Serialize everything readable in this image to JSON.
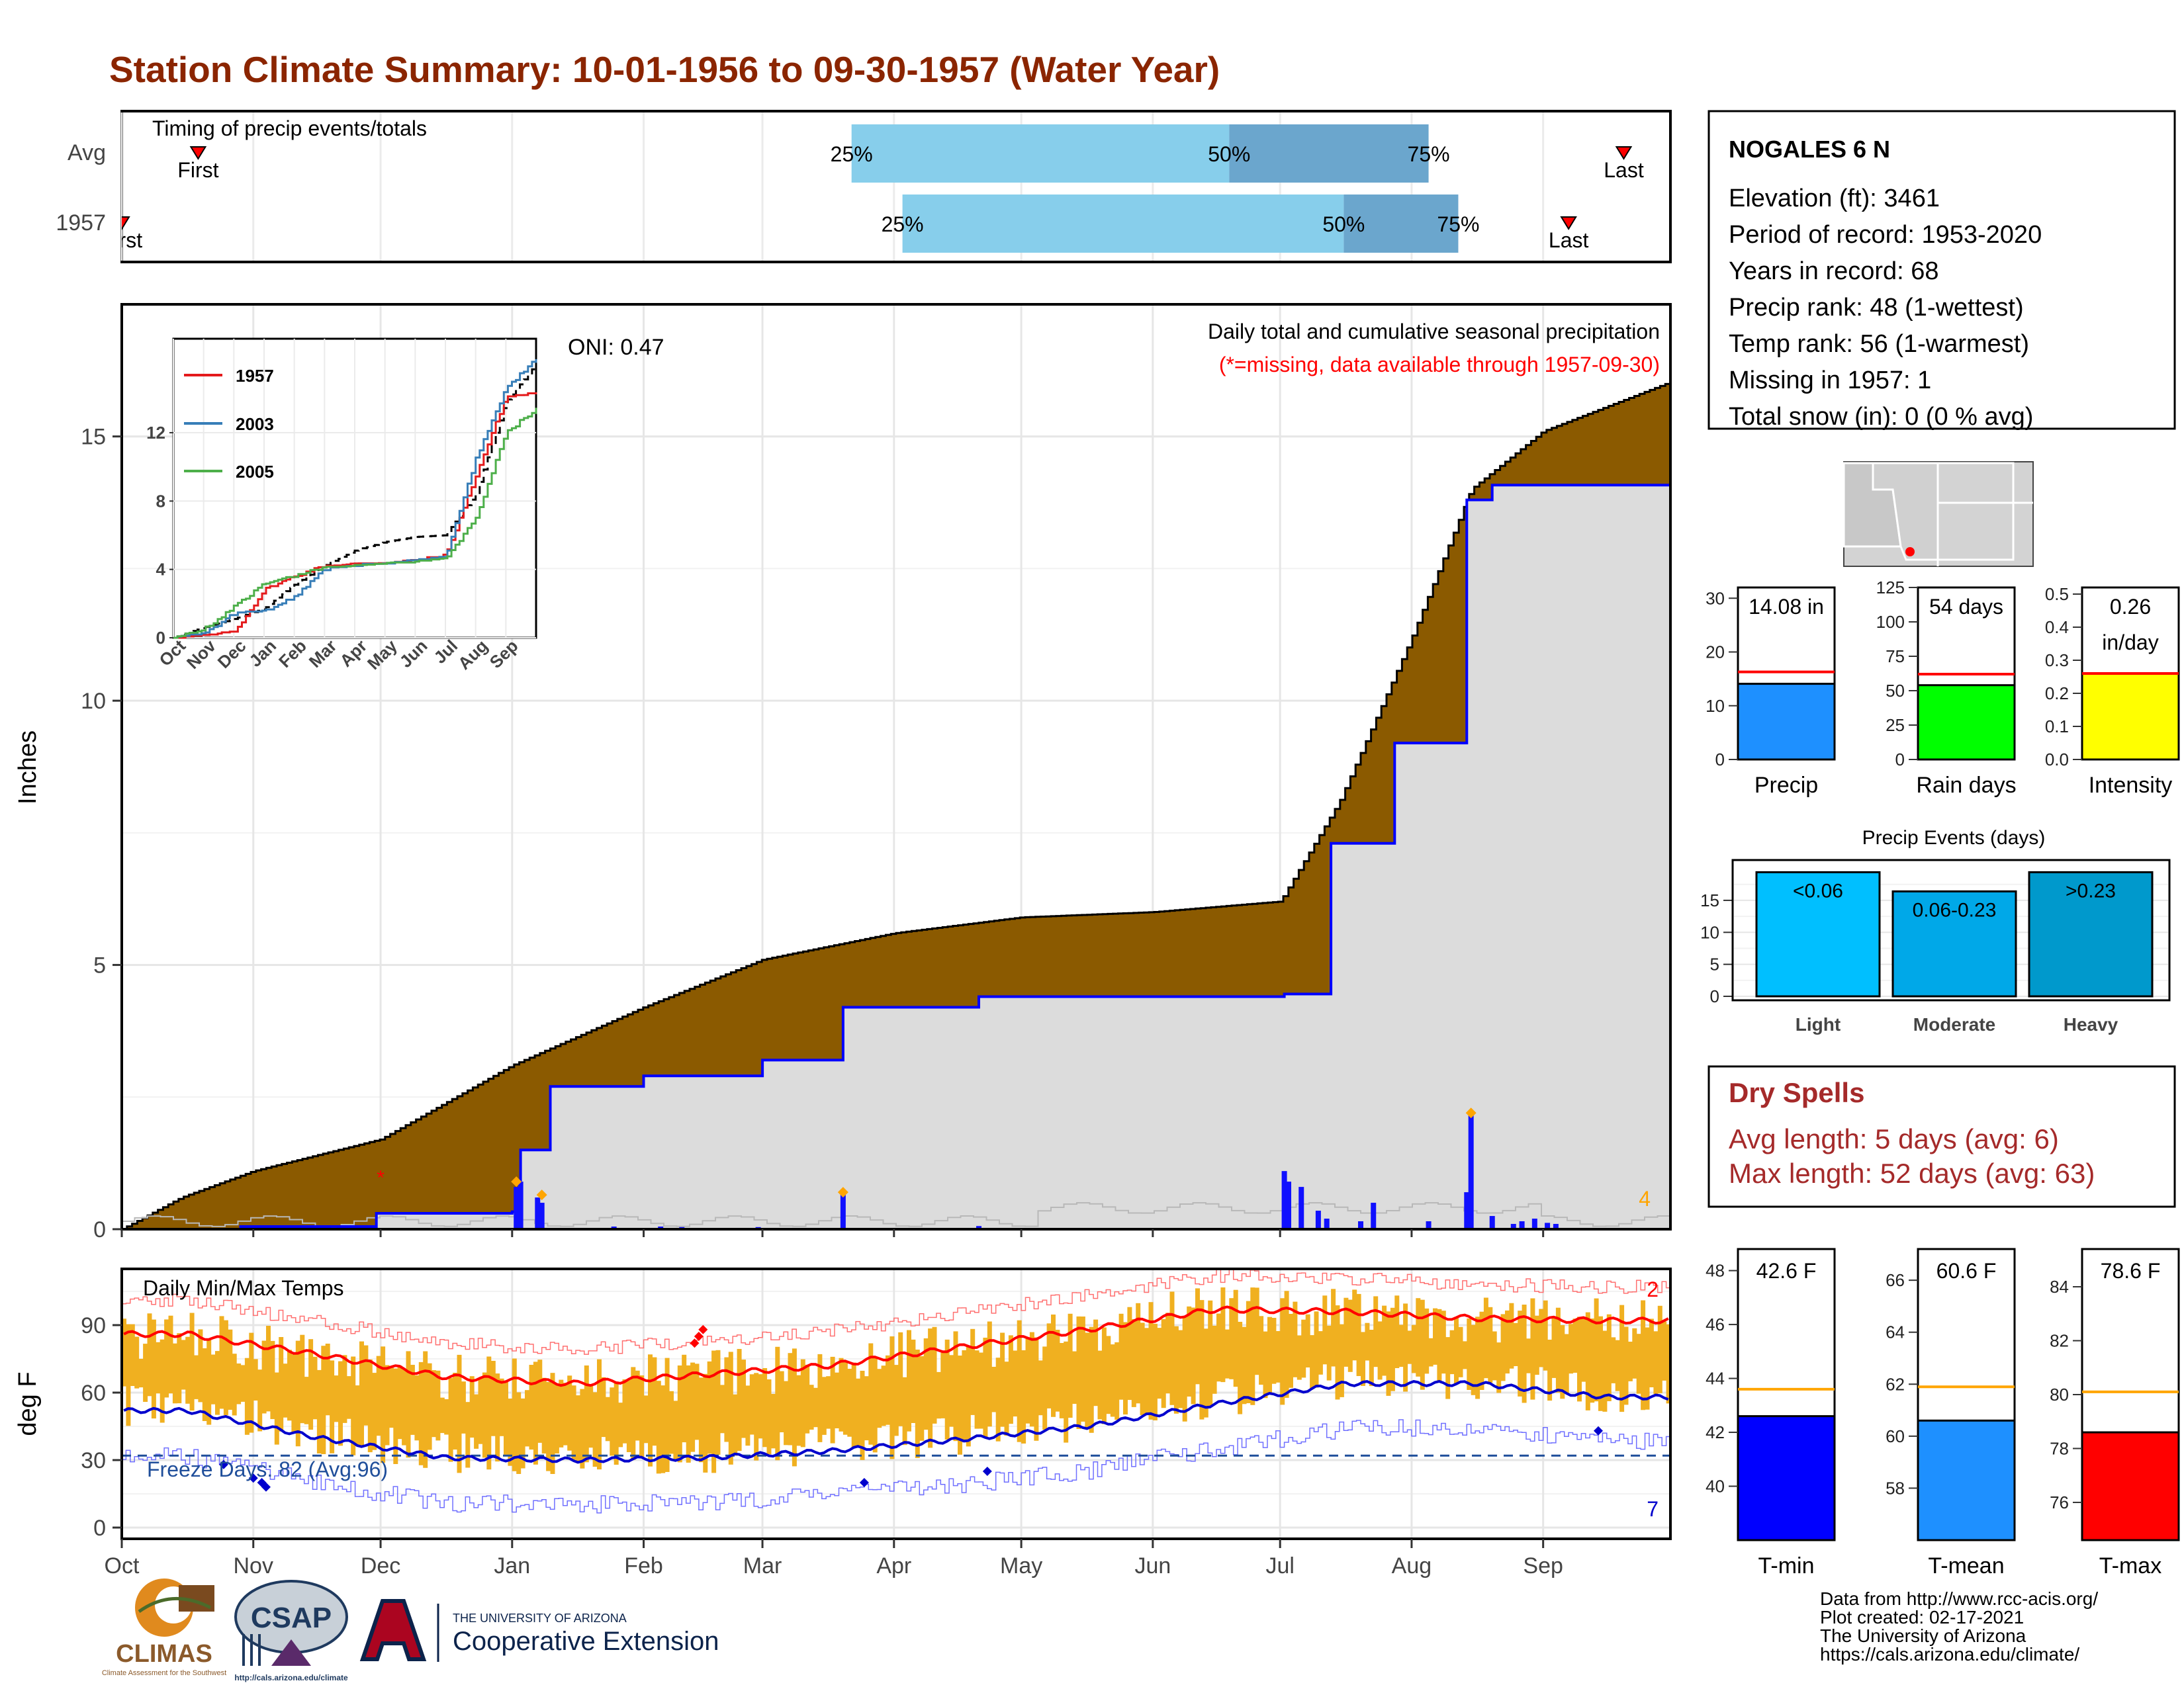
{
  "title": "Station Climate Summary: 10-01-1956 to 09-30-1957 (Water Year)",
  "colors": {
    "title": "#8B2500",
    "cumulative_area": "#8B5A00",
    "normal_area": "#DCDCDC",
    "daily_bars": "#1010FF",
    "temp_range": "#F0B020",
    "tmax_line": "#FF0000",
    "tmin_line": "#0000CD",
    "timing_light": "#87CEEB",
    "timing_dark": "#6BA6CD",
    "dry_spells": "#A52A2A"
  },
  "timing": {
    "label": "Timing of precip events/totals",
    "rows": [
      {
        "name": "Avg",
        "first_label": "First",
        "last_label": "Last",
        "p25": "25%",
        "p50": "50%",
        "p75": "75%",
        "first_date": "1956-10-19",
        "last_date": "1957-09-20",
        "p25_date": "1957-03-22",
        "p50_date": "1957-06-19",
        "p75_date": "1957-08-05"
      },
      {
        "name": "1957",
        "first_label": "First",
        "last_label": "Last",
        "p25": "25%",
        "p50": "50%",
        "p75": "75%",
        "first_date": "1956-10-01",
        "last_date": "1957-09-07",
        "p25_date": "1957-04-03",
        "p50_date": "1957-07-16",
        "p75_date": "1957-08-12"
      }
    ]
  },
  "main_chart": {
    "subtitle": "Daily total and cumulative seasonal precipitation",
    "missing_note": "(*=missing, data available through 1957-09-30)",
    "oni": "ONI: 0.47",
    "ylabel": "Inches",
    "yticks": [
      "0",
      "5",
      "10",
      "15"
    ],
    "months": [
      "Oct",
      "Nov",
      "Dec",
      "Jan",
      "Feb",
      "Mar",
      "Apr",
      "May",
      "Jun",
      "Jul",
      "Aug",
      "Sep"
    ],
    "corner_count": "4"
  },
  "inset": {
    "legend": [
      "1957",
      "2003",
      "2005"
    ],
    "yticks": [
      "0",
      "4",
      "8",
      "12"
    ],
    "months": [
      "Oct",
      "Nov",
      "Dec",
      "Jan",
      "Feb",
      "Mar",
      "Apr",
      "May",
      "Jun",
      "Jul",
      "Aug",
      "Sep"
    ]
  },
  "temp_chart": {
    "label": "Daily Min/Max Temps",
    "freeze": "Freeze Days: 82 (Avg:96)",
    "ylabel": "deg F",
    "yticks": [
      "0",
      "30",
      "60",
      "90"
    ],
    "count_hot": "2",
    "count_cold": "7"
  },
  "station": {
    "name": "NOGALES 6 N",
    "lines": [
      "Elevation (ft): 3461",
      "Period of record: 1953-2020",
      "Years in record: 68",
      "Precip rank: 48 (1-wettest)",
      "Temp rank: 56 (1-warmest)",
      "Missing in 1957: 1",
      "Total snow (in): 0 (0 % avg)"
    ]
  },
  "mini_bars": [
    {
      "label": "Precip",
      "value_text": "14.08 in",
      "value": 14.08,
      "avg": 16.3,
      "ymax": 32,
      "ticks": [
        "0",
        "10",
        "20",
        "30"
      ],
      "color": "#1E90FF"
    },
    {
      "label": "Rain days",
      "value_text": "54 days",
      "value": 54,
      "avg": 62,
      "ymax": 125,
      "ticks": [
        "0",
        "25",
        "50",
        "75",
        "100",
        "125"
      ],
      "color": "#00FF00"
    },
    {
      "label": "Intensity",
      "value_text": "0.26",
      "value_text2": "in/day",
      "value": 0.26,
      "avg": 0.26,
      "ymax": 0.52,
      "ticks": [
        "0.0",
        "0.1",
        "0.2",
        "0.3",
        "0.4",
        "0.5"
      ],
      "color": "#FFFF00"
    }
  ],
  "precip_events": {
    "title": "Precip Events (days)",
    "ticks": [
      "0",
      "5",
      "10",
      "15"
    ],
    "bars": [
      {
        "category": "Light",
        "label": "<0.06",
        "value": 19.4,
        "color": "#00BFFF"
      },
      {
        "category": "Moderate",
        "label": "0.06-0.23",
        "value": 16.4,
        "color": "#00A8E8"
      },
      {
        "category": "Heavy",
        "label": ">0.23",
        "value": 19.4,
        "color": "#0099CC"
      }
    ]
  },
  "dry_spells": {
    "title": "Dry Spells",
    "avg": "Avg length: 5 days (avg: 6)",
    "max": "Max length: 52 days (avg: 63)"
  },
  "temp_bars": [
    {
      "label": "T-min",
      "value_text": "42.6 F",
      "value": 42.6,
      "avg": 43.6,
      "ymin": 38.0,
      "ymax": 48.8,
      "ticks": [
        "40",
        "42",
        "44",
        "46",
        "48"
      ],
      "color": "#0000FF"
    },
    {
      "label": "T-mean",
      "value_text": "60.6 F",
      "value": 60.6,
      "avg": 61.9,
      "ymin": 56.0,
      "ymax": 67.2,
      "ticks": [
        "58",
        "60",
        "62",
        "64",
        "66"
      ],
      "color": "#1E90FF"
    },
    {
      "label": "T-max",
      "value_text": "78.6 F",
      "value": 78.6,
      "avg": 80.1,
      "ymin": 74.6,
      "ymax": 85.4,
      "ticks": [
        "76",
        "78",
        "80",
        "82",
        "84"
      ],
      "color": "#FF0000"
    }
  ],
  "credits": [
    "Data from http://www.rcc-acis.org/",
    "Plot created: 02-17-2021",
    "The University of Arizona",
    "https://cals.arizona.edu/climate/"
  ],
  "logos": {
    "climas": "CLIMAS",
    "climas_sub": "Climate Assessment for the Southwest",
    "csap": "CSAP",
    "csap_url": "http://cals.arizona.edu/climate",
    "ua_line1": "THE UNIVERSITY OF ARIZONA",
    "ua_line2": "Cooperative Extension"
  },
  "chart_data": [
    {
      "type": "area",
      "title": "Daily total and cumulative seasonal precipitation",
      "ylabel": "Inches",
      "ylim": [
        0,
        17.5
      ],
      "grid": true,
      "series": [
        {
          "name": "cumulative",
          "x": [
            "1956-10-01",
            "1956-10-15",
            "1956-11-01",
            "1956-12-01",
            "1957-01-01",
            "1957-02-01",
            "1957-03-01",
            "1957-04-01",
            "1957-05-01",
            "1957-06-01",
            "1957-07-01",
            "1957-07-15",
            "1957-08-01",
            "1957-08-15",
            "1957-09-01",
            "1957-09-30"
          ],
          "values": [
            0.0,
            0.6,
            1.1,
            1.7,
            3.1,
            4.2,
            5.1,
            5.6,
            5.9,
            6.0,
            6.2,
            8.1,
            11.2,
            14.0,
            15.1,
            16.0
          ]
        },
        {
          "name": "actual",
          "x": [
            "1956-10-01",
            "1956-10-29",
            "1956-11-30",
            "1957-01-01",
            "1957-01-03",
            "1957-01-10",
            "1957-02-01",
            "1957-03-01",
            "1957-03-20",
            "1957-04-21",
            "1957-07-02",
            "1957-07-13",
            "1957-07-28",
            "1957-08-14",
            "1957-08-20",
            "1957-09-30"
          ],
          "values": [
            0.0,
            0.05,
            0.3,
            0.33,
            1.5,
            2.7,
            2.9,
            3.2,
            4.2,
            4.4,
            4.45,
            7.3,
            9.2,
            13.8,
            14.08,
            14.08
          ]
        }
      ]
    },
    {
      "type": "bar",
      "title": "Daily precipitation",
      "x": [
        "1957-01-02",
        "1957-01-03",
        "1957-01-07",
        "1957-01-08",
        "1957-03-20",
        "1957-07-02",
        "1957-07-03",
        "1957-07-06",
        "1957-08-14",
        "1957-08-15"
      ],
      "values": [
        0.8,
        0.9,
        0.6,
        0.5,
        0.7,
        1.1,
        0.9,
        0.8,
        0.7,
        2.2
      ]
    },
    {
      "type": "line",
      "title": "Daily Min/Max Temps",
      "ylabel": "deg F",
      "ylim": [
        -5,
        115
      ],
      "series": [
        {
          "name": "tmax normal",
          "x": [
            "Oct",
            "Nov",
            "Dec",
            "Jan",
            "Feb",
            "Mar",
            "Apr",
            "May",
            "Jun",
            "Jul",
            "Aug",
            "Sep"
          ],
          "values": [
            86,
            77,
            67,
            64,
            68,
            72,
            80,
            88,
            97,
            96,
            93,
            92
          ]
        },
        {
          "name": "tmin normal",
          "x": [
            "Oct",
            "Nov",
            "Dec",
            "Jan",
            "Feb",
            "Mar",
            "Apr",
            "May",
            "Jun",
            "Jul",
            "Aug",
            "Sep"
          ],
          "values": [
            52,
            40,
            31,
            30,
            31,
            34,
            39,
            45,
            55,
            64,
            64,
            58
          ]
        }
      ]
    }
  ]
}
